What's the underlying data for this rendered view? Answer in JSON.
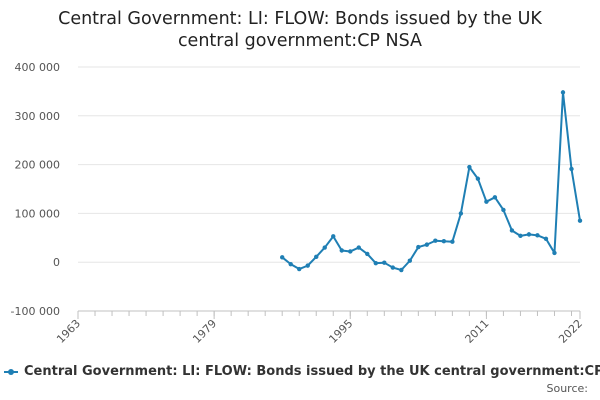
{
  "colors": {
    "series": "#1f7fb4",
    "grid": "#e6e6e6",
    "axis": "#c0c0c0"
  },
  "chart_data": {
    "type": "line",
    "title_lines": [
      "Central Government: LI: FLOW: Bonds issued by the UK",
      "central government:CP NSA"
    ],
    "xlabel": "",
    "ylabel": "",
    "xlim": [
      1963,
      2022
    ],
    "ylim": [
      -100000,
      400000
    ],
    "y_ticks": [
      -100000,
      0,
      100000,
      200000,
      300000,
      400000
    ],
    "y_tick_labels": [
      "-100 000",
      "0",
      "100 000",
      "200 000",
      "300 000",
      "400 000"
    ],
    "x_ticks": [
      1963,
      1979,
      1995,
      2011,
      2022
    ],
    "x_tick_labels": [
      "1963",
      "1979",
      "1995",
      "2011",
      "2022"
    ],
    "grid": true,
    "legend_position": "bottom",
    "series": [
      {
        "name": "Central Government: LI: FLOW: Bonds issued by the UK central government:CP NSA",
        "x": [
          1987,
          1988,
          1989,
          1990,
          1991,
          1992,
          1993,
          1994,
          1995,
          1996,
          1997,
          1998,
          1999,
          2000,
          2001,
          2002,
          2003,
          2004,
          2005,
          2006,
          2007,
          2008,
          2009,
          2010,
          2011,
          2012,
          2013,
          2014,
          2015,
          2016,
          2017,
          2018,
          2019,
          2020,
          2021,
          2022
        ],
        "values": [
          10000,
          -4000,
          -14000,
          -7000,
          11000,
          30000,
          53000,
          24000,
          22000,
          30000,
          17000,
          -2000,
          -1000,
          -11000,
          -16000,
          3000,
          31000,
          36000,
          44000,
          43000,
          42000,
          100000,
          195000,
          171000,
          124000,
          133000,
          107000,
          65000,
          54000,
          57000,
          55000,
          48000,
          19000,
          348000,
          191000,
          85000
        ]
      }
    ]
  },
  "legend": {
    "label": "Central Government: LI: FLOW: Bonds issued by the UK central government:CP NSA"
  },
  "source": {
    "label": "Source:"
  }
}
